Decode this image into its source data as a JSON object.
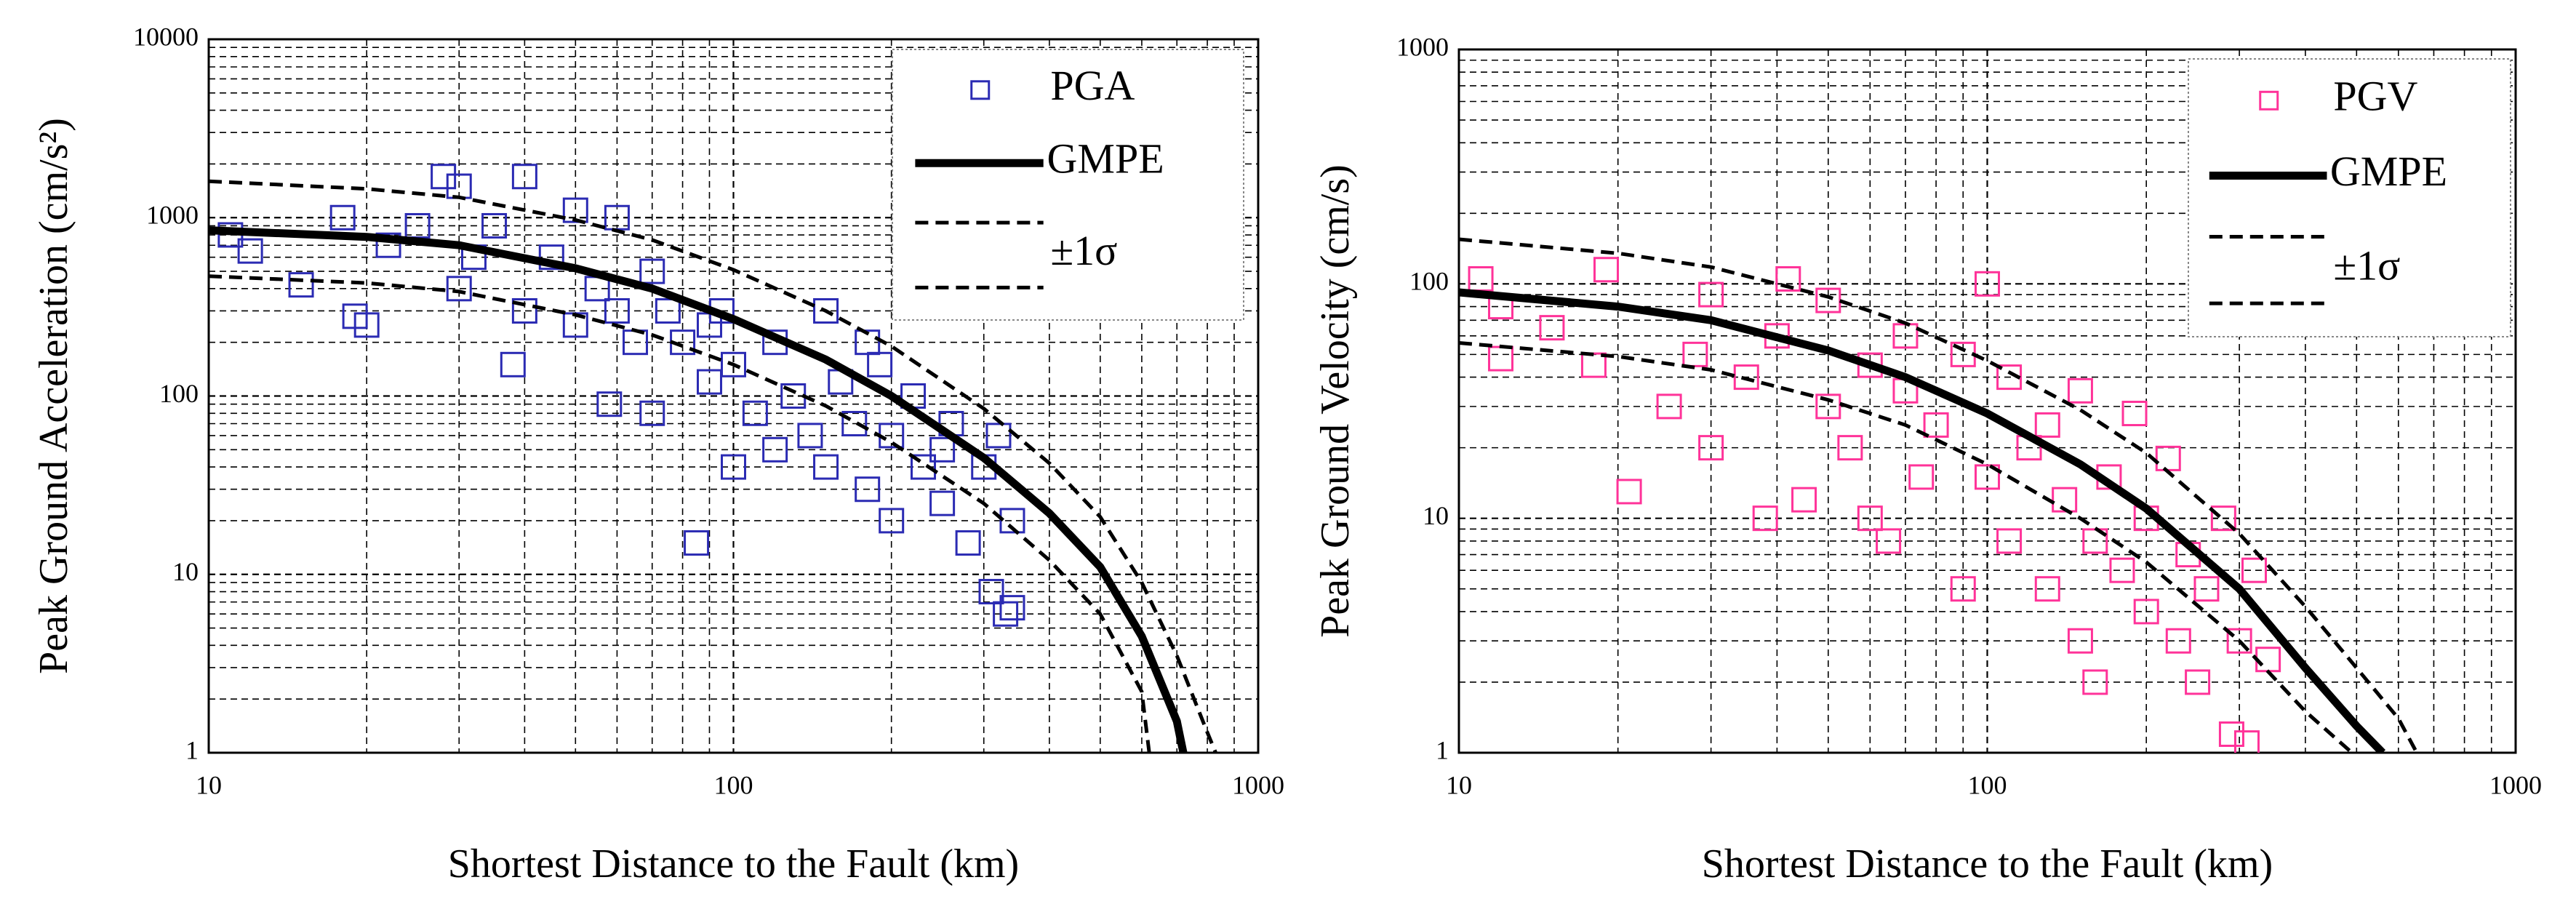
{
  "chart_data": [
    {
      "type": "scatter",
      "x_label": "Shortest Distance to the Fault (km)",
      "y_label": "Peak Ground Acceleration (cm/s²)",
      "log_x": true,
      "log_y": true,
      "grid": true,
      "minor_grid": true,
      "legend": "upper right",
      "xlim": [
        10,
        1000
      ],
      "xticks": [
        10,
        100,
        1000
      ],
      "ylim": [
        1,
        10000
      ],
      "yticks": [
        1,
        10,
        100,
        1000,
        10000
      ],
      "series": [
        {
          "name": "PGA",
          "color": "#2b2bb3",
          "marker": "square",
          "x": [
            11,
            12,
            15,
            18,
            19,
            20,
            22,
            25,
            28,
            30,
            30,
            32,
            35,
            38,
            40,
            40,
            45,
            50,
            50,
            55,
            58,
            60,
            60,
            65,
            70,
            70,
            75,
            80,
            85,
            90,
            95,
            100,
            100,
            110,
            120,
            130,
            140,
            150,
            150,
            160,
            170,
            180,
            190,
            200,
            200,
            220,
            230,
            250,
            260,
            280,
            300,
            310,
            320,
            330,
            340,
            340,
            120,
            90,
            250,
            180
          ],
          "values": [
            800,
            650,
            420,
            1000,
            280,
            250,
            700,
            900,
            1700,
            1500,
            400,
            600,
            900,
            150,
            1700,
            300,
            600,
            1100,
            250,
            400,
            90,
            1000,
            300,
            200,
            500,
            80,
            300,
            200,
            15,
            120,
            300,
            150,
            40,
            80,
            200,
            100,
            60,
            300,
            40,
            120,
            70,
            30,
            150,
            60,
            20,
            100,
            40,
            25,
            70,
            15,
            40,
            8,
            60,
            6,
            20,
            6.5,
            50,
            250,
            50,
            200
          ]
        },
        {
          "name": "GMPE",
          "color": "#000000",
          "style": "solid",
          "lines": [
            {
              "x": [
                10,
                20,
                30,
                50,
                70,
                100,
                150,
                200,
                300,
                400,
                500,
                600,
                700,
                720
              ],
              "values": [
                850,
                780,
                700,
                520,
                400,
                270,
                160,
                100,
                45,
                22,
                11,
                4.5,
                1.5,
                1
              ]
            }
          ]
        },
        {
          "name": "±1σ",
          "color": "#000000",
          "style": "dashed",
          "lines": [
            {
              "x": [
                10,
                20,
                30,
                50,
                70,
                100,
                150,
                200,
                300,
                400,
                500,
                600,
                700,
                800,
                830
              ],
              "values": [
                1600,
                1450,
                1300,
                970,
                750,
                510,
                300,
                190,
                85,
                42,
                21,
                9,
                3.5,
                1.3,
                1
              ]
            },
            {
              "x": [
                10,
                20,
                30,
                50,
                70,
                100,
                150,
                200,
                300,
                400,
                500,
                600,
                620
              ],
              "values": [
                470,
                430,
                385,
                285,
                220,
                150,
                88,
                55,
                25,
                12,
                6,
                2.2,
                1
              ]
            }
          ]
        }
      ]
    },
    {
      "type": "scatter",
      "x_label": "Shortest Distance to the Fault (km)",
      "y_label": "Peak Ground Velocity (cm/s)",
      "log_x": true,
      "log_y": true,
      "grid": true,
      "minor_grid": true,
      "legend": "upper right",
      "xlim": [
        10,
        1000
      ],
      "xticks": [
        10,
        100,
        1000
      ],
      "ylim": [
        1,
        1000
      ],
      "yticks": [
        1,
        10,
        100,
        1000
      ],
      "series": [
        {
          "name": "PGV",
          "color": "#ff3399",
          "marker": "square",
          "x": [
            11,
            12,
            12,
            15,
            18,
            19,
            21,
            25,
            28,
            30,
            30,
            35,
            38,
            40,
            42,
            45,
            50,
            50,
            55,
            60,
            65,
            70,
            75,
            80,
            90,
            100,
            100,
            110,
            120,
            130,
            140,
            150,
            150,
            160,
            170,
            180,
            190,
            200,
            200,
            220,
            230,
            240,
            250,
            260,
            280,
            290,
            300,
            310,
            320,
            340,
            110,
            90,
            130,
            60,
            160,
            70
          ],
          "values": [
            105,
            80,
            48,
            65,
            45,
            115,
            13,
            30,
            50,
            90,
            20,
            40,
            10,
            60,
            105,
            12,
            85,
            30,
            20,
            45,
            8,
            35,
            15,
            25,
            50,
            100,
            15,
            8,
            20,
            5,
            12,
            35,
            3,
            8,
            15,
            6,
            28,
            4,
            10,
            18,
            3,
            7,
            2,
            5,
            10,
            1.2,
            3,
            1.1,
            6,
            2.5,
            40,
            5,
            25,
            10,
            2,
            60
          ]
        },
        {
          "name": "GMPE",
          "color": "#000000",
          "style": "solid",
          "lines": [
            {
              "x": [
                10,
                20,
                30,
                50,
                70,
                100,
                150,
                200,
                300,
                400,
                500,
                560
              ],
              "values": [
                92,
                80,
                70,
                52,
                40,
                28,
                17,
                11,
                5,
                2.3,
                1.3,
                1
              ]
            }
          ]
        },
        {
          "name": "±1σ",
          "color": "#000000",
          "style": "dashed",
          "lines": [
            {
              "x": [
                10,
                20,
                30,
                50,
                70,
                100,
                150,
                200,
                300,
                400,
                500,
                600,
                650
              ],
              "values": [
                155,
                135,
                118,
                88,
                68,
                47,
                29,
                19,
                8.6,
                4.2,
                2.3,
                1.4,
                1
              ]
            },
            {
              "x": [
                10,
                20,
                30,
                50,
                70,
                100,
                150,
                200,
                300,
                400,
                490
              ],
              "values": [
                56,
                49,
                43,
                32,
                25,
                17,
                10,
                6.5,
                3,
                1.5,
                1
              ]
            }
          ]
        }
      ]
    }
  ]
}
